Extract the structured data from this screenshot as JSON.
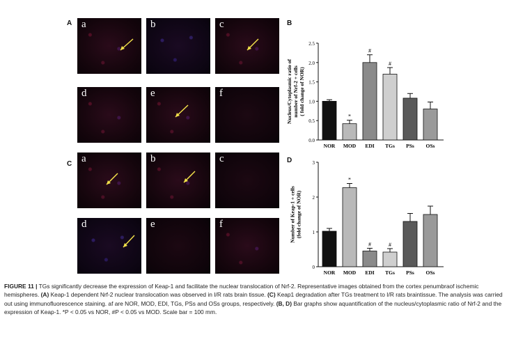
{
  "panels": {
    "A": "A",
    "B": "B",
    "C": "C",
    "D": "D"
  },
  "micrographs": {
    "A": [
      "a",
      "b",
      "c",
      "d",
      "e",
      "f"
    ],
    "C": [
      "a",
      "b",
      "c",
      "d",
      "e",
      "f"
    ],
    "scale_text": "100 mm"
  },
  "colors": {
    "arrow": "#f2e14a",
    "bar_black": "#111111",
    "bar_lightgray": "#c8c8c8",
    "bar_gray": "#8a8a8a",
    "bar_dark": "#555555"
  },
  "chart_data": [
    {
      "panel": "B",
      "type": "bar",
      "categories": [
        "NOR",
        "MOD",
        "EDI",
        "TGs",
        "PSs",
        "OSs"
      ],
      "values": [
        1.0,
        0.42,
        2.0,
        1.7,
        1.08,
        0.8
      ],
      "errors": [
        0.04,
        0.09,
        0.2,
        0.17,
        0.12,
        0.18
      ],
      "annotations": [
        "",
        "*",
        "#",
        "#",
        "",
        ""
      ],
      "bar_colors": [
        "#111111",
        "#b9b9b9",
        "#8a8a8a",
        "#cfcfcf",
        "#5a5a5a",
        "#9a9a9a"
      ],
      "ylabel_lines": [
        "Nucleus/Cytoplasmic ratio of",
        "number of Nrf-2 + cells",
        "( fold change of NOR)"
      ],
      "ylim": [
        0,
        2.5
      ],
      "yticks": [
        "0.0",
        "0.5",
        "1.0",
        "1.5",
        "2.0",
        "2.5"
      ]
    },
    {
      "panel": "D",
      "type": "bar",
      "categories": [
        "NOR",
        "MOD",
        "EDI",
        "TGs",
        "PSs",
        "OSs"
      ],
      "values": [
        1.02,
        2.27,
        0.45,
        0.42,
        1.3,
        1.5
      ],
      "errors": [
        0.08,
        0.12,
        0.08,
        0.1,
        0.23,
        0.24
      ],
      "annotations": [
        "",
        "*",
        "#",
        "#",
        "",
        ""
      ],
      "bar_colors": [
        "#111111",
        "#b9b9b9",
        "#8a8a8a",
        "#cfcfcf",
        "#5a5a5a",
        "#9a9a9a"
      ],
      "ylabel_lines": [
        "Number of Keap-1 + cells",
        "(fold change of NOR)"
      ],
      "ylim": [
        0,
        3
      ],
      "yticks": [
        "0",
        "1",
        "2",
        "3"
      ]
    }
  ],
  "caption": {
    "figure_label": "FIGURE 11 |",
    "text1": " TGs significantly decrease the expression of Keap-1 and facilitate the nuclear translocation of Nrf-2. Representative images obtained from the cortex penumbraof ischemic hemispheres. ",
    "tagA": "(A)",
    "text2": " Keap-1 dependent Nrf-2 nuclear translocation was observed in I/R rats brain tissue. ",
    "tagC": "(C)",
    "text3": " Keap1 degradation after TGs treatment to I/R rats braintissue. The analysis was carried out using immunofluorescence staining. af are NOR, MOD, EDI, TGs, PSs and OSs groups, respectively. ",
    "tagBD": "(B, D)",
    "text4": " Bar graphs show aquantification of the nucleus/cytoplasmic ratio of Nrf-2 and the expression of Keap-1. *P < 0.05 vs NOR, #P < 0.05 vs MOD. Scale bar = 100 mm."
  }
}
